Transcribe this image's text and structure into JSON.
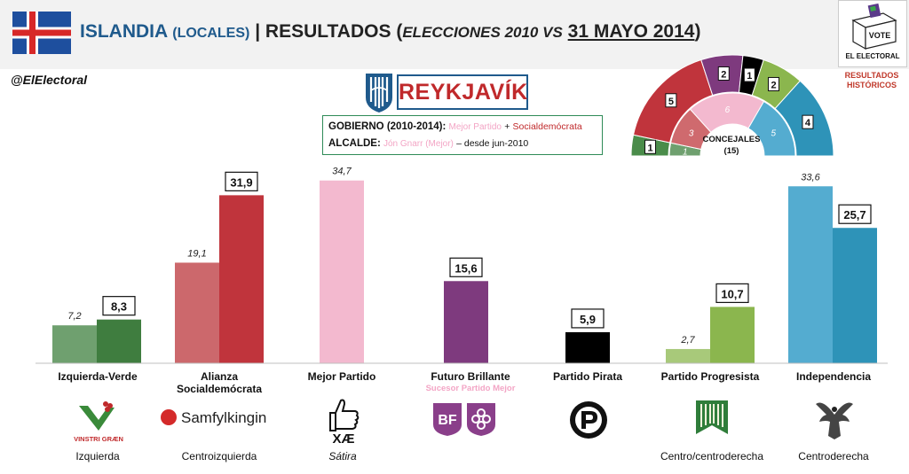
{
  "header": {
    "country": "ISLANDIA",
    "scope": "(LOCALES)",
    "sep": "|",
    "res": "RESULTADOS",
    "open": "(",
    "elections": "ELECCIONES 2010 VS",
    "date": "31 MAYO 2014",
    "close": ")"
  },
  "vote": {
    "box_text": "VOTE",
    "label": "EL ELECTORAL"
  },
  "historical": {
    "line1": "RESULTADOS",
    "line2": "HISTÓRICOS"
  },
  "handle": "@ElElectoral",
  "city": "REYKJAVÍK",
  "government": {
    "label": "GOBIERNO",
    "period": "(2010-2014):",
    "party1": "Mejor Partido",
    "plus": "+",
    "party2": "Socialdemócrata",
    "mayor_label": "ALCALDE:",
    "mayor": "Jón Gnarr (Mejor)",
    "since": "– desde jun-2010"
  },
  "seats": {
    "label": "CONCEJALES",
    "total": "(15)",
    "segments": [
      {
        "party": "Izquierda-Verde",
        "y2014": 1,
        "y2010": 1,
        "color2014": "#4a8c4a",
        "color2010": "#6fa06f"
      },
      {
        "party": "Alianza Socialdemócrata",
        "y2014": 5,
        "y2010": 3,
        "color2014": "#c0343c",
        "color2010": "#cf6a6e"
      },
      {
        "party": "Mejor Partido",
        "y2014": 0,
        "y2010": 6,
        "color2014": "#f3b9cf",
        "color2010": "#f3b9cf"
      },
      {
        "party": "Futuro Brillante",
        "y2014": 2,
        "y2010": 0,
        "color2014": "#7e3a7e",
        "color2010": "#7e3a7e"
      },
      {
        "party": "Partido Pirata",
        "y2014": 1,
        "y2010": 0,
        "color2014": "#000000",
        "color2010": "#000000"
      },
      {
        "party": "Partido Progresista",
        "y2014": 2,
        "y2010": 0,
        "color2014": "#8bb64e",
        "color2010": "#8bb64e"
      },
      {
        "party": "Independencia",
        "y2014": 4,
        "y2010": 5,
        "color2014": "#2e93b8",
        "color2010": "#54acd0"
      }
    ]
  },
  "chart_data": {
    "type": "bar",
    "categories": [
      "Izquierda-Verde",
      "Alianza Socialdemócrata",
      "Mejor Partido",
      "Futuro Brillante",
      "Partido Pirata",
      "Partido Progresista",
      "Independencia"
    ],
    "series": [
      {
        "name": "2010",
        "values": [
          7.2,
          19.1,
          34.7,
          null,
          null,
          2.7,
          33.6
        ]
      },
      {
        "name": "2014",
        "values": [
          8.3,
          31.9,
          null,
          15.6,
          5.9,
          10.7,
          25.7
        ]
      }
    ],
    "labels2010": [
      "7,2",
      "19,1",
      "34,7",
      "",
      "",
      "2,7",
      "33,6"
    ],
    "labels2014": [
      "8,3",
      "31,9",
      "",
      "15,6",
      "5,9",
      "10,7",
      "25,7"
    ],
    "colors2010": [
      "#6fa06f",
      "#cc686c",
      "#f3b9cf",
      "#7e3a7e",
      "#000000",
      "#a8c97a",
      "#54acd0"
    ],
    "colors2014": [
      "#3f7d3f",
      "#c0343c",
      "#f3b9cf",
      "#7e3a7e",
      "#000000",
      "#8bb64e",
      "#2e93b8"
    ],
    "ylim": [
      0,
      36
    ]
  },
  "parties": [
    {
      "name": "Izquierda-Verde",
      "ideology": "Izquierda",
      "logo_text": "VINSTRI GRÆN"
    },
    {
      "name": "Alianza Socialdemócrata",
      "ideology": "Centroizquierda",
      "logo_text": "Samfylkingin"
    },
    {
      "name": "Mejor Partido",
      "ideology": "Sátira",
      "logo_text": "XÆ"
    },
    {
      "name": "Futuro Brillante",
      "ideology": "",
      "logo_text": "BF",
      "successor": "Sucesor Partido Mejor"
    },
    {
      "name": "Partido Pirata",
      "ideology": "",
      "logo_text": ""
    },
    {
      "name": "Partido Progresista",
      "ideology": "Centro/centroderecha",
      "logo_text": ""
    },
    {
      "name": "Independencia",
      "ideology": "Centroderecha",
      "logo_text": ""
    }
  ]
}
